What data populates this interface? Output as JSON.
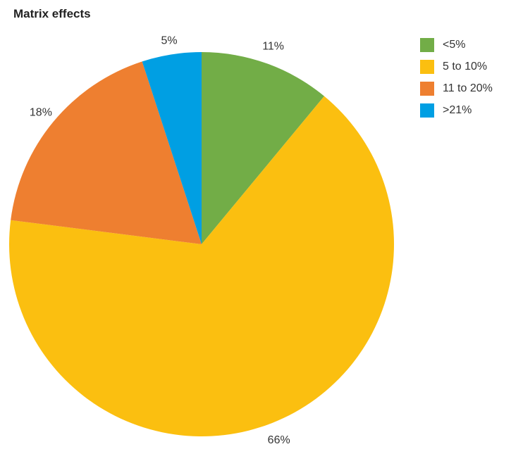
{
  "chart_data": {
    "type": "pie",
    "title": "Matrix effects",
    "categories": [
      "<5%",
      "5 to 10%",
      "11 to 20%",
      ">21%"
    ],
    "values": [
      11,
      66,
      18,
      5
    ],
    "value_labels": [
      "11%",
      "66%",
      "18%",
      "5%"
    ],
    "colors": [
      "#72AD47",
      "#FBBF10",
      "#EE7F30",
      "#009FE3"
    ],
    "start_angle": "12 o'clock",
    "direction": "clockwise",
    "legend_position": "right-top"
  }
}
